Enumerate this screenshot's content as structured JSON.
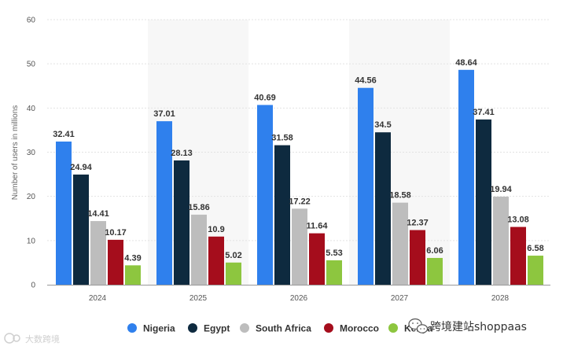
{
  "chart_data": {
    "type": "bar",
    "categories": [
      "2024",
      "2025",
      "2026",
      "2027",
      "2028"
    ],
    "ylabel": "Number of users in millions",
    "ylim": [
      0,
      60
    ],
    "yticks": [
      0,
      10,
      20,
      30,
      40,
      50,
      60
    ],
    "grid": true,
    "legend_position": "bottom",
    "series": [
      {
        "name": "Nigeria",
        "color": "#2f80ed",
        "values": [
          32.41,
          37.01,
          40.69,
          44.56,
          48.64
        ]
      },
      {
        "name": "Egypt",
        "color": "#0e2a3f",
        "values": [
          24.94,
          28.13,
          31.58,
          34.5,
          37.41
        ]
      },
      {
        "name": "South Africa",
        "color": "#bdbdbd",
        "values": [
          14.41,
          15.86,
          17.22,
          18.58,
          19.94
        ]
      },
      {
        "name": "Morocco",
        "color": "#a50d1c",
        "values": [
          10.17,
          10.9,
          11.64,
          12.37,
          13.08
        ]
      },
      {
        "name": "Kenya",
        "color": "#8dc63f",
        "values": [
          4.39,
          5.02,
          5.53,
          6.06,
          6.58
        ]
      }
    ]
  },
  "watermark": {
    "right_text": "跨境建站shoppaas",
    "left_text": "大数跨境",
    "icon": "wechat-icon"
  }
}
